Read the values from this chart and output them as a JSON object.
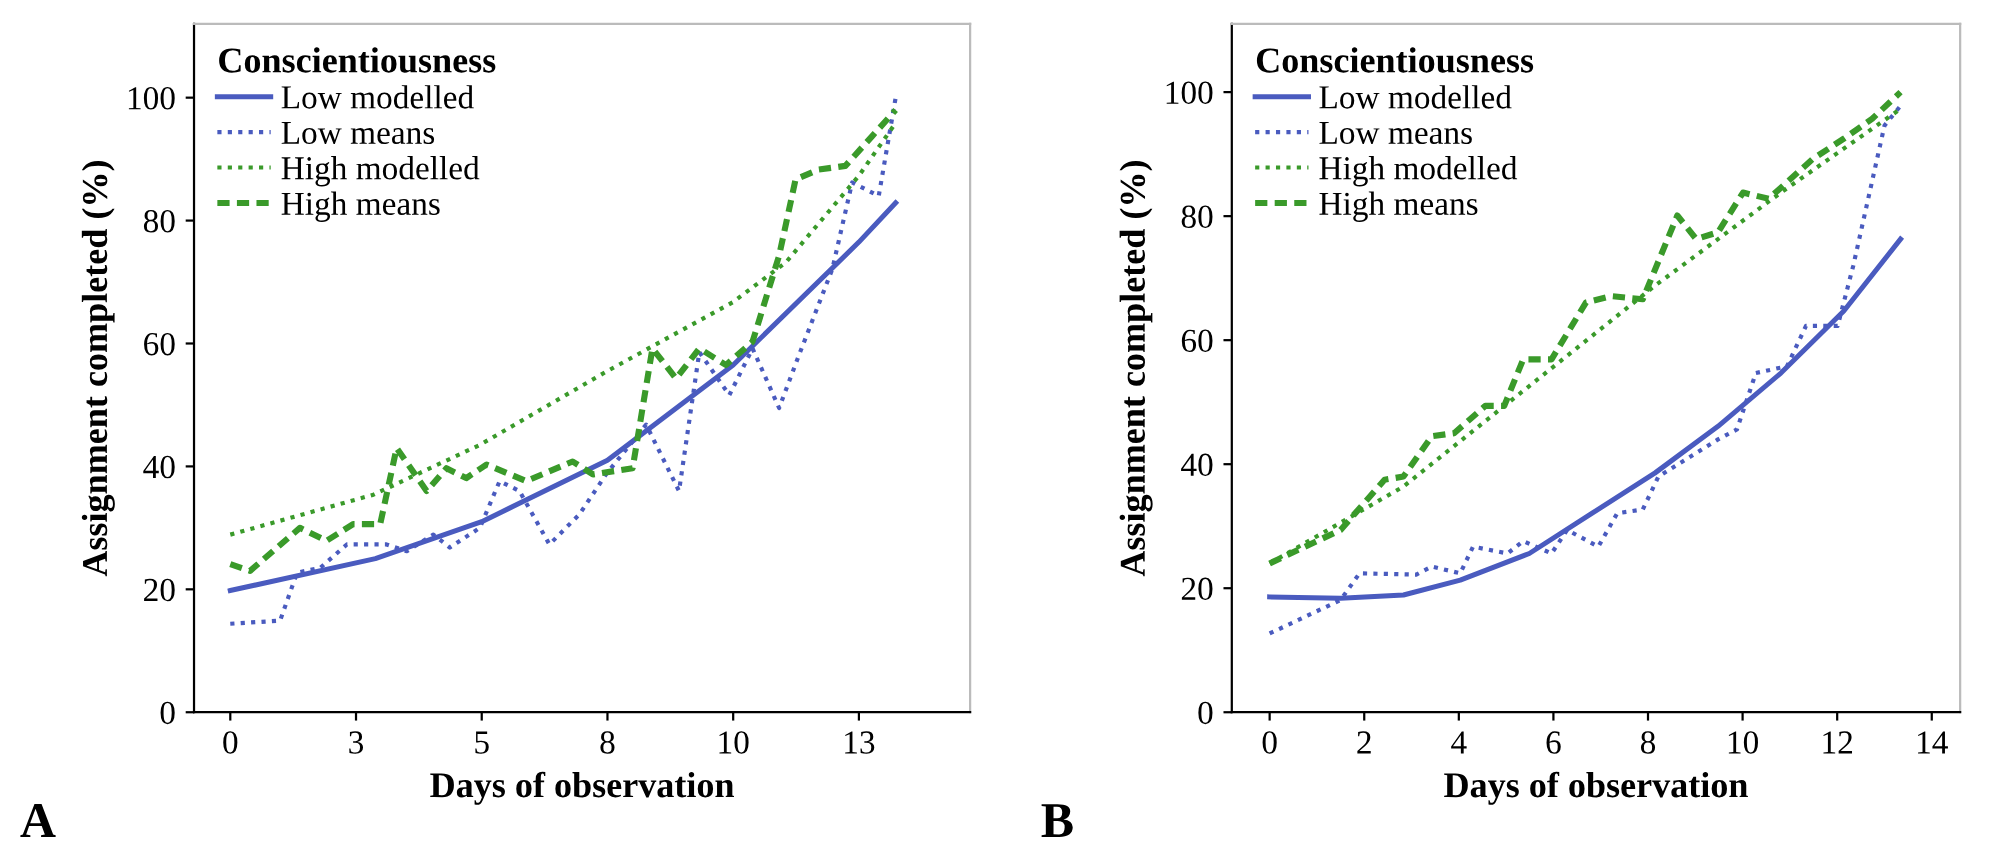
{
  "chart_data": [
    {
      "type": "line",
      "xlabel": "Days of observation",
      "ylabel": "Assignment completed (%)",
      "legend_title": "Conscientiousness",
      "legend": "top left",
      "grid": false,
      "xlim": [
        -0.75,
        15.3
      ],
      "ylim": [
        0,
        112
      ],
      "xticks": [
        0,
        {
          "value": 2.6,
          "label": "3"
        },
        {
          "value": 5.2,
          "label": "5"
        },
        {
          "value": 7.8,
          "label": "8"
        },
        {
          "value": 10.4,
          "label": "10"
        },
        13
      ],
      "yticks": [
        0,
        20,
        40,
        60,
        80,
        100
      ],
      "annotations": [
        "A"
      ],
      "series": [
        {
          "name": "Low modelled",
          "color": "#4a5bbf",
          "line_style": "solid",
          "x": [
            0,
            3,
            5.2,
            7.8,
            10.4,
            13,
            13.76
          ],
          "values": [
            19.8,
            25,
            31,
            41,
            56.5,
            76.5,
            82.9
          ]
        },
        {
          "name": "Low means",
          "color": "#4a5bbf",
          "line_style": "dotted",
          "x": [
            0,
            1.03,
            1.38,
            1.86,
            2.41,
            3.23,
            3.65,
            4.2,
            4.54,
            5.16,
            5.57,
            5.98,
            6.6,
            7.22,
            7.77,
            8.6,
            9.28,
            9.7,
            10.32,
            10.8,
            11.35,
            11.76,
            12.45,
            12.86,
            13.41,
            13.76
          ],
          "values": [
            14.4,
            14.9,
            22.7,
            23.5,
            27.3,
            27.3,
            26.2,
            28.9,
            26.8,
            30,
            37.6,
            36,
            27.3,
            32.2,
            38.7,
            46.8,
            36,
            58.6,
            51.6,
            59.2,
            49.5,
            58.1,
            72.1,
            86.2,
            84,
            100
          ]
        },
        {
          "name": "High modelled",
          "color": "#3a9a2a",
          "line_style": "dotted",
          "x": [
            0,
            2.96,
            5.16,
            7.77,
            10.39,
            11.49,
            13,
            13.76
          ],
          "values": [
            28.9,
            35.4,
            43.5,
            55.4,
            66.7,
            73.2,
            87.3,
            95.9
          ]
        },
        {
          "name": "High means",
          "color": "#3a9a2a",
          "line_style": "dashed",
          "x": [
            0,
            0.41,
            1.44,
            1.99,
            2.54,
            3.1,
            3.44,
            4.06,
            4.47,
            4.88,
            5.3,
            6.12,
            7.08,
            7.5,
            8.32,
            8.73,
            9.22,
            9.7,
            10.25,
            10.8,
            11.35,
            11.69,
            12.17,
            12.72,
            13.27,
            13.76
          ],
          "values": [
            24.1,
            23,
            30,
            27.9,
            30.6,
            30.6,
            43,
            36,
            39.7,
            38.1,
            40.3,
            37.6,
            40.8,
            38.7,
            39.7,
            59.2,
            54.3,
            59.2,
            56.5,
            60.3,
            74.3,
            86.7,
            88.3,
            88.9,
            93.7,
            98
          ]
        }
      ]
    },
    {
      "type": "line",
      "xlabel": "Days of observation",
      "ylabel": "Assignment completed (%)",
      "legend_title": "Conscientiousness",
      "legend": "top left",
      "grid": false,
      "xlim": [
        -0.8,
        14.6
      ],
      "ylim": [
        0,
        111
      ],
      "xticks": [
        0,
        2,
        4,
        6,
        8,
        10,
        12,
        14
      ],
      "yticks": [
        0,
        20,
        40,
        60,
        80,
        100
      ],
      "annotations": [
        "B"
      ],
      "series": [
        {
          "name": "Low modelled",
          "color": "#4a5bbf",
          "line_style": "solid",
          "x": [
            0,
            1.5,
            2.83,
            4.03,
            5.49,
            6.82,
            8.15,
            9.48,
            10.81,
            12.14,
            13.34
          ],
          "values": [
            18.6,
            18.4,
            18.9,
            21.3,
            25.6,
            32.1,
            38.6,
            46.1,
            54.7,
            64.7,
            76.3
          ]
        },
        {
          "name": "Low means",
          "color": "#4a5bbf",
          "line_style": "dotted",
          "x": [
            0,
            1.5,
            1.9,
            3.1,
            3.43,
            4.03,
            4.3,
            5.03,
            5.36,
            5.96,
            6.29,
            6.95,
            7.35,
            7.89,
            8.22,
            9.48,
            9.88,
            10.28,
            10.94,
            11.34,
            12.01,
            12.34,
            13,
            13.34
          ],
          "values": [
            12.7,
            18.1,
            22.4,
            22.2,
            23.5,
            22.4,
            26.7,
            25.6,
            27.6,
            25.6,
            29.4,
            26.7,
            32.1,
            32.7,
            38,
            44,
            45.6,
            54.7,
            55.8,
            62.3,
            62.3,
            72,
            94.6,
            97.8
          ]
        },
        {
          "name": "High modelled",
          "color": "#3a9a2a",
          "line_style": "dotted",
          "x": [
            0,
            2.83,
            5.49,
            8.15,
            10.81,
            13.34
          ],
          "values": [
            24,
            36.4,
            52.6,
            68.8,
            83.8,
            97.3
          ]
        },
        {
          "name": "High means",
          "color": "#3a9a2a",
          "line_style": "dashed",
          "x": [
            0,
            1.5,
            2.43,
            2.83,
            3.43,
            3.9,
            4.56,
            4.96,
            5.36,
            5.96,
            6.69,
            7.22,
            7.89,
            8.62,
            9.02,
            9.48,
            10.01,
            10.55,
            11.48,
            12.14,
            12.74,
            13.34
          ],
          "values": [
            24,
            29.4,
            37.5,
            38,
            44.5,
            45,
            49.4,
            49.4,
            56.9,
            56.9,
            66.1,
            67.1,
            66.6,
            80.1,
            76.3,
            77.4,
            83.8,
            82.8,
            89.2,
            92.5,
            95.7,
            100
          ]
        }
      ]
    }
  ]
}
